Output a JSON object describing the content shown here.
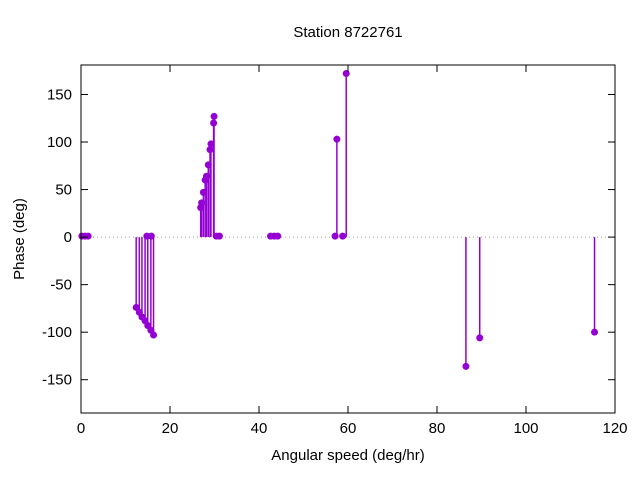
{
  "page": {
    "background": "#ffffff"
  },
  "chart_data": {
    "type": "scatter",
    "style": "impulses+points",
    "title": "Station 8722761",
    "xlabel": "Angular speed (deg/hr)",
    "ylabel": "Phase (deg)",
    "xlim": [
      0,
      120
    ],
    "ylim": [
      -185,
      181
    ],
    "xticks": [
      0,
      20,
      40,
      60,
      80,
      100,
      120
    ],
    "yticks": [
      -150,
      -100,
      -50,
      0,
      50,
      100,
      150
    ],
    "grid": false,
    "legend": "none",
    "zero_line": "dotted",
    "accent_color": "#9400d3",
    "axis_color": "#000000",
    "zero_line_color": "#9e9e9e",
    "points": [
      [
        0.2,
        1
      ],
      [
        0.9,
        1
      ],
      [
        1.6,
        1
      ],
      [
        12.4,
        -74
      ],
      [
        13.1,
        -79
      ],
      [
        13.7,
        -84
      ],
      [
        14.4,
        -88
      ],
      [
        14.8,
        1
      ],
      [
        15.0,
        -93
      ],
      [
        15.7,
        -98
      ],
      [
        15.8,
        1
      ],
      [
        16.3,
        -103
      ],
      [
        26.9,
        31
      ],
      [
        27.1,
        36
      ],
      [
        27.5,
        47
      ],
      [
        27.9,
        60
      ],
      [
        28.2,
        64
      ],
      [
        28.6,
        76
      ],
      [
        29.0,
        92
      ],
      [
        29.2,
        98
      ],
      [
        29.8,
        120
      ],
      [
        29.9,
        127
      ],
      [
        30.4,
        1
      ],
      [
        31.1,
        1
      ],
      [
        42.6,
        1
      ],
      [
        43.4,
        1
      ],
      [
        44.2,
        1
      ],
      [
        57.1,
        1
      ],
      [
        57.5,
        103
      ],
      [
        58.8,
        1
      ],
      [
        59.6,
        172
      ],
      [
        86.5,
        -136
      ],
      [
        89.6,
        -106
      ],
      [
        115.4,
        -100
      ]
    ]
  }
}
